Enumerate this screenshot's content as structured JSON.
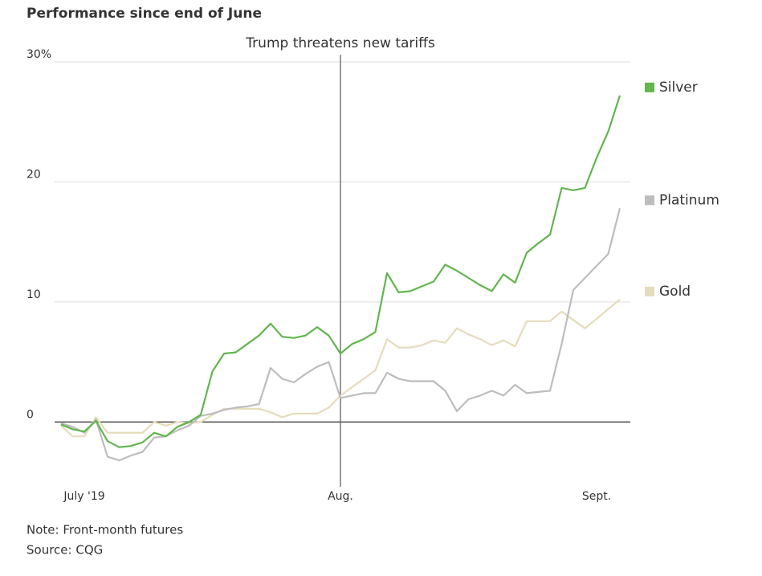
{
  "chart_data": {
    "type": "line",
    "title": "Performance since end of June",
    "notes": [
      "Note: Front-month futures",
      "Source: CQG"
    ],
    "annotations": [
      {
        "text": "Trump threatens new tariffs",
        "x": "Aug."
      }
    ],
    "categories": [
      null,
      null,
      "July '19",
      null,
      null,
      null,
      null,
      null,
      null,
      null,
      null,
      null,
      null,
      null,
      null,
      null,
      null,
      null,
      null,
      null,
      null,
      null,
      null,
      null,
      "Aug.",
      null,
      null,
      null,
      null,
      null,
      null,
      null,
      null,
      null,
      null,
      null,
      null,
      null,
      null,
      null,
      null,
      null,
      null,
      null,
      null,
      null,
      "Sept.",
      null,
      null
    ],
    "series": [
      {
        "name": "Silver",
        "color": "#62b54f",
        "values": [
          -0.2,
          -0.6,
          -0.8,
          0.1,
          -1.6,
          -2.1,
          -2.0,
          -1.7,
          -0.9,
          -1.2,
          -0.4,
          0.0,
          0.6,
          4.2,
          5.7,
          5.8,
          6.5,
          7.2,
          8.2,
          7.1,
          7.0,
          7.2,
          7.9,
          7.2,
          5.7,
          6.5,
          6.9,
          7.5,
          12.4,
          10.8,
          10.9,
          11.3,
          11.7,
          13.1,
          12.6,
          12.0,
          11.4,
          10.9,
          12.3,
          11.6,
          14.1,
          14.9,
          15.6,
          19.5,
          19.3,
          19.5,
          22.0,
          24.2,
          27.2
        ]
      },
      {
        "name": "Platinum",
        "color": "#bdbdbd",
        "values": [
          -0.1,
          -0.4,
          -0.9,
          0.2,
          -2.9,
          -3.2,
          -2.8,
          -2.5,
          -1.3,
          -1.2,
          -0.7,
          -0.3,
          0.5,
          0.7,
          1.0,
          1.2,
          1.3,
          1.5,
          4.5,
          3.6,
          3.3,
          4.0,
          4.6,
          5.0,
          2.0,
          2.2,
          2.4,
          2.4,
          4.1,
          3.6,
          3.4,
          3.4,
          3.4,
          2.6,
          0.9,
          1.9,
          2.2,
          2.6,
          2.2,
          3.1,
          2.4,
          2.5,
          2.6,
          6.5,
          11.0,
          12.0,
          13.0,
          14.0,
          17.8
        ]
      },
      {
        "name": "Gold",
        "color": "#e4dcbb",
        "values": [
          -0.3,
          -1.2,
          -1.2,
          0.4,
          -0.9,
          -0.9,
          -0.9,
          -0.9,
          0.0,
          -0.3,
          0.0,
          -0.1,
          0.0,
          0.6,
          1.1,
          1.1,
          1.1,
          1.1,
          0.8,
          0.4,
          0.7,
          0.7,
          0.7,
          1.2,
          2.2,
          2.9,
          3.6,
          4.3,
          6.9,
          6.2,
          6.2,
          6.4,
          6.8,
          6.6,
          7.8,
          7.3,
          6.9,
          6.4,
          6.8,
          6.3,
          8.4,
          8.4,
          8.4,
          9.2,
          8.5,
          7.8,
          8.6,
          9.4,
          10.2
        ]
      }
    ],
    "ylim": [
      -5,
      30
    ],
    "yticks": [
      0,
      10,
      20,
      {
        "value": 30,
        "label": "30%"
      }
    ],
    "grid": true
  }
}
